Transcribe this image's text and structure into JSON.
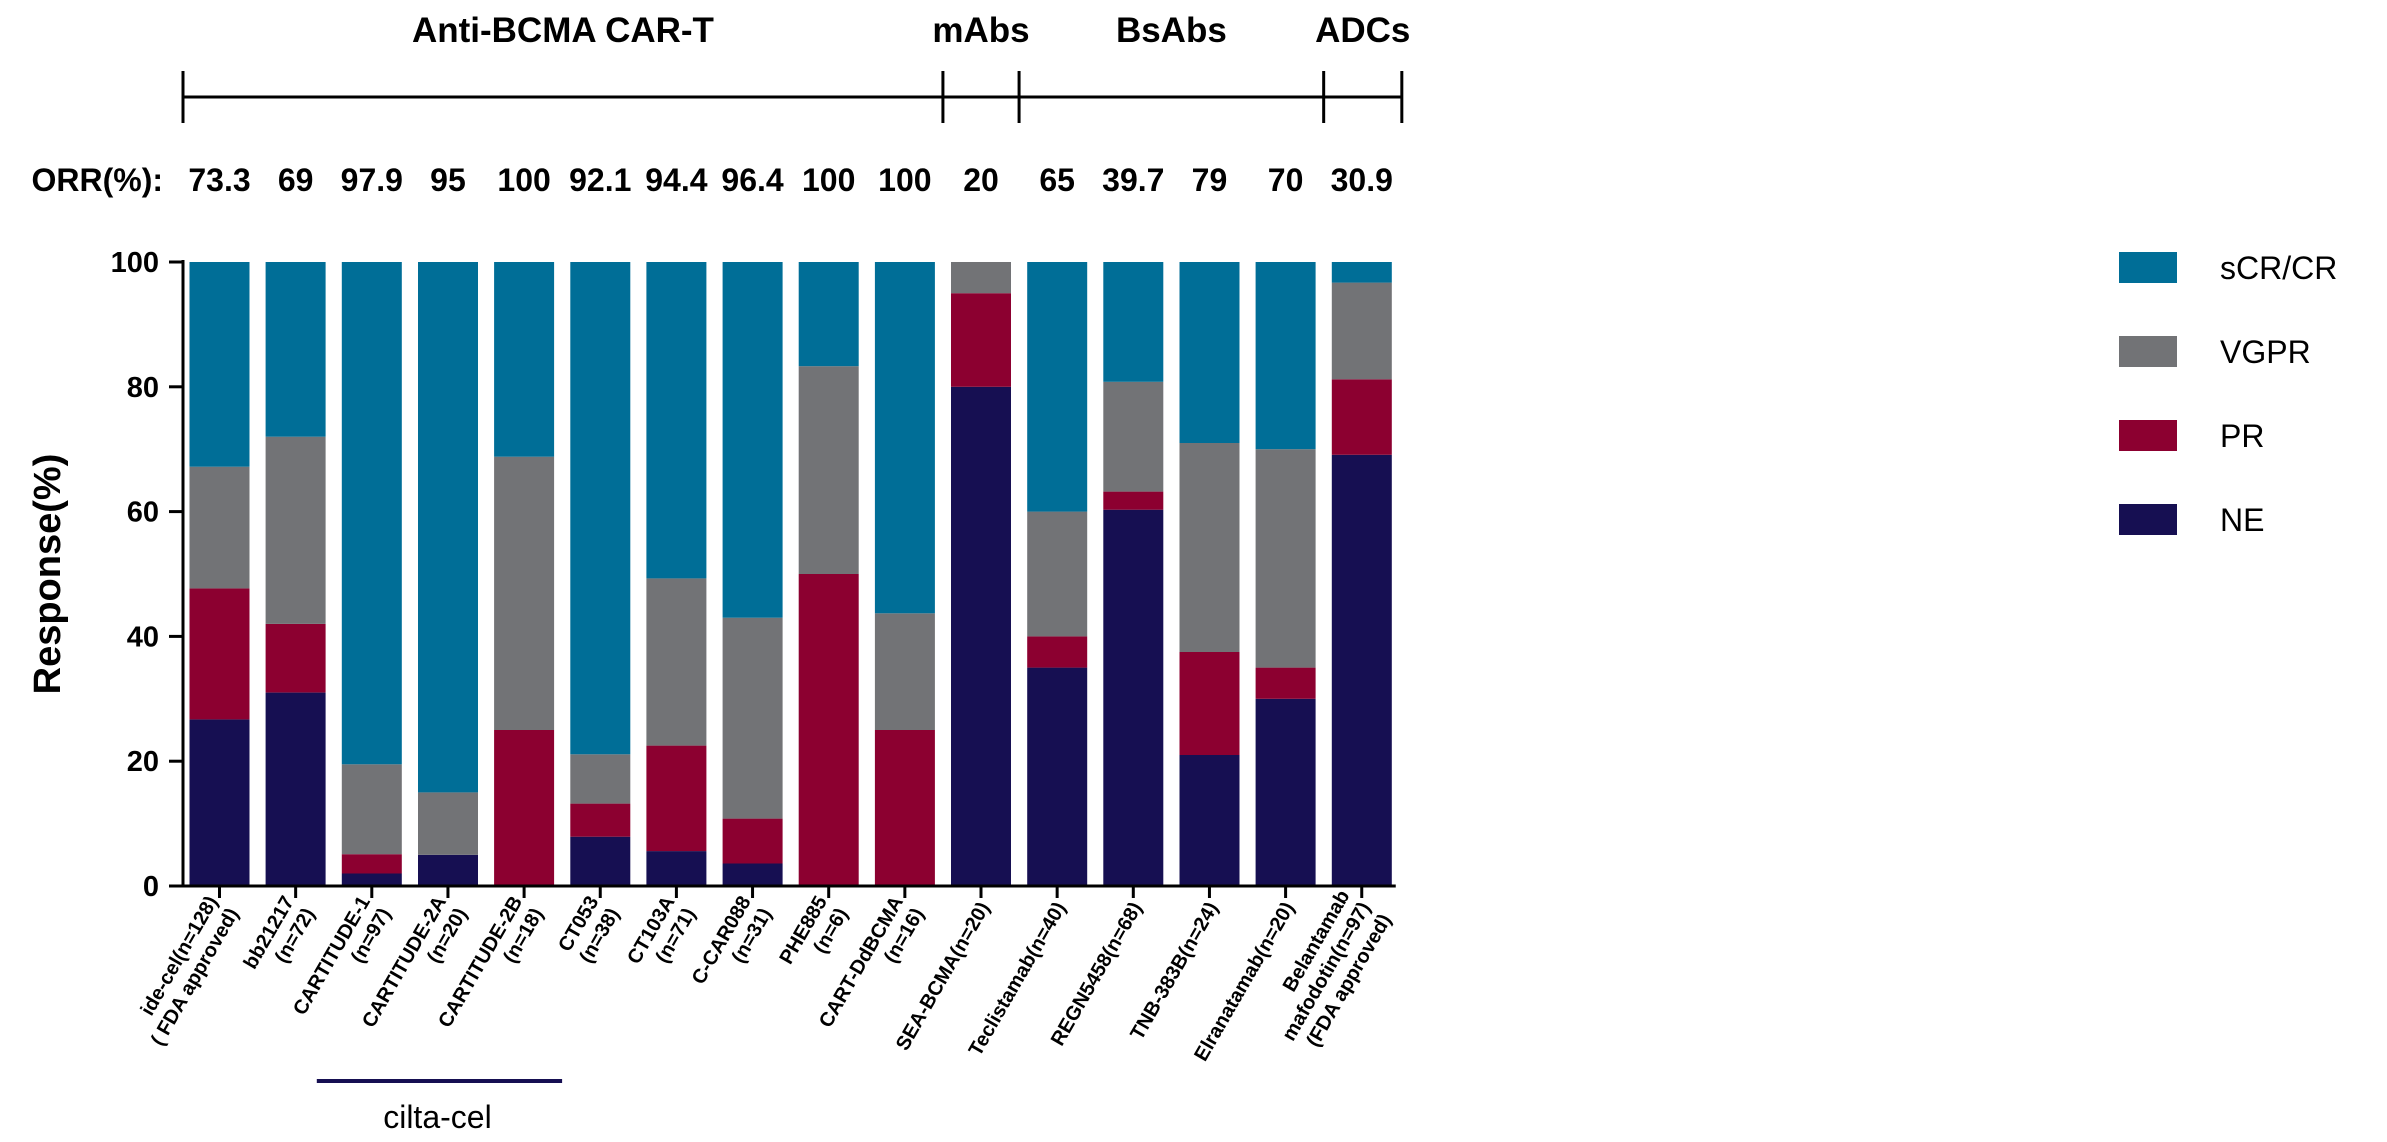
{
  "chart_data": {
    "type": "bar",
    "stacked": true,
    "ylabel": "Response(%)",
    "ylim": [
      0,
      100
    ],
    "yticks": [
      0,
      20,
      40,
      60,
      80,
      100
    ],
    "categories": [
      [
        "ide-cel(n=128)",
        "( FDA approved)"
      ],
      [
        "bb21217",
        "(n=72)"
      ],
      [
        "CARTITUDE-1",
        "(n=97)"
      ],
      [
        "CARTITUDE-2A",
        "(n=20)"
      ],
      [
        "CARTITUDE-2B",
        "(n=18)"
      ],
      [
        "CT053",
        "(n=38)"
      ],
      [
        "CT103A",
        "(n=71)"
      ],
      [
        "C-CAR088",
        "(n=31)"
      ],
      [
        "PHE885",
        "(n=6)"
      ],
      [
        "CART-DdBCMA",
        "(n=16)"
      ],
      [
        "SEA-BCMA(n=20)"
      ],
      [
        "Teclistamab(n=40)"
      ],
      [
        "REGN5458(n=68)"
      ],
      [
        "TNB-383B(n=24)"
      ],
      [
        "Elranatamab(n=20)"
      ],
      [
        "Belantamab",
        "mafodotin(n=97)",
        "(FDA approved)"
      ]
    ],
    "series": [
      {
        "name": "NE",
        "color": "#160f52",
        "values": [
          26.7,
          31,
          2,
          5,
          0,
          7.9,
          5.6,
          3.6,
          0,
          0,
          80,
          35,
          60.3,
          21,
          30,
          69.1
        ]
      },
      {
        "name": "PR",
        "color": "#8c0030",
        "values": [
          21,
          11,
          3.1,
          0,
          25,
          5.3,
          16.9,
          7.2,
          50,
          25,
          15,
          5,
          2.9,
          16.5,
          5,
          12.1
        ]
      },
      {
        "name": "VGPR",
        "color": "#727376",
        "values": [
          19.5,
          30,
          14.4,
          10,
          43.8,
          7.9,
          26.8,
          32.2,
          33.3,
          18.7,
          5,
          20,
          17.6,
          33.5,
          35,
          15.5
        ]
      },
      {
        "name": "sCR/CR",
        "color": "#006e97",
        "values": [
          32.8,
          28,
          80.5,
          85,
          31.2,
          78.9,
          50.7,
          57,
          16.7,
          56.3,
          0,
          40,
          19.2,
          29,
          30,
          3.3
        ]
      }
    ],
    "orr_label": "ORR(%):",
    "orr": [
      "73.3",
      "69",
      "97.9",
      "95",
      "100",
      "92.1",
      "94.4",
      "96.4",
      "100",
      "100",
      "20",
      "65",
      "39.7",
      "79",
      "70",
      "30.9"
    ],
    "groups": [
      {
        "label": "Anti-BCMA CAR-T",
        "start": 0,
        "end": 9
      },
      {
        "label": "mAbs",
        "start": 10,
        "end": 10
      },
      {
        "label": "BsAbs",
        "start": 11,
        "end": 14
      },
      {
        "label": "ADCs",
        "start": 15,
        "end": 15
      }
    ],
    "bracket": {
      "label": "cilta-cel",
      "start": 2,
      "end": 4
    },
    "legend_order": [
      "sCR/CR",
      "VGPR",
      "PR",
      "NE"
    ],
    "legend_position": "right"
  }
}
